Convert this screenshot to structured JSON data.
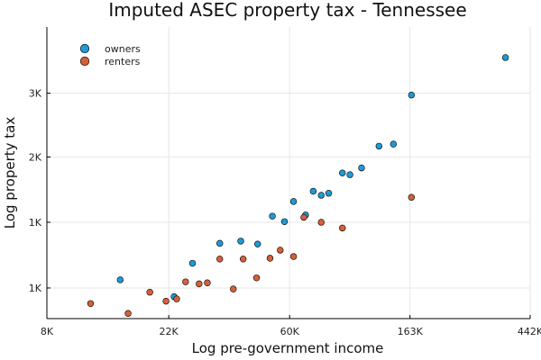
{
  "chart_data": {
    "type": "scatter",
    "title": "Imputed ASEC property tax - Tennessee",
    "xlabel": "Log pre-government income",
    "ylabel": "Log property tax",
    "x_scale": "log",
    "y_scale": "log",
    "xlim": [
      8000,
      442000
    ],
    "ylim": [
      480,
      4700
    ],
    "x_ticks": [
      {
        "value": 8000,
        "label": "8K"
      },
      {
        "value": 22000,
        "label": "22K"
      },
      {
        "value": 60000,
        "label": "60K"
      },
      {
        "value": 163000,
        "label": "163K"
      },
      {
        "value": 442000,
        "label": "442K"
      }
    ],
    "y_ticks": [
      {
        "value": 610,
        "label": "1K"
      },
      {
        "value": 1020,
        "label": "1K"
      },
      {
        "value": 1700,
        "label": "2K"
      },
      {
        "value": 2800,
        "label": "3K"
      }
    ],
    "grid": true,
    "legend_position": "top-left",
    "series": [
      {
        "name": "owners",
        "color": "#1f9ad6",
        "points": [
          {
            "x": 14700,
            "y": 650
          },
          {
            "x": 23000,
            "y": 570
          },
          {
            "x": 26800,
            "y": 740
          },
          {
            "x": 33600,
            "y": 865
          },
          {
            "x": 40000,
            "y": 880
          },
          {
            "x": 46000,
            "y": 860
          },
          {
            "x": 52000,
            "y": 1070
          },
          {
            "x": 57500,
            "y": 1025
          },
          {
            "x": 62000,
            "y": 1200
          },
          {
            "x": 68500,
            "y": 1080
          },
          {
            "x": 73000,
            "y": 1300
          },
          {
            "x": 78000,
            "y": 1260
          },
          {
            "x": 83000,
            "y": 1280
          },
          {
            "x": 93000,
            "y": 1500
          },
          {
            "x": 99000,
            "y": 1480
          },
          {
            "x": 109000,
            "y": 1560
          },
          {
            "x": 126000,
            "y": 1850
          },
          {
            "x": 142000,
            "y": 1880
          },
          {
            "x": 165000,
            "y": 2760
          },
          {
            "x": 360000,
            "y": 3700
          }
        ]
      },
      {
        "name": "renters",
        "color": "#d4603a",
        "points": [
          {
            "x": 11500,
            "y": 540
          },
          {
            "x": 15700,
            "y": 500
          },
          {
            "x": 18800,
            "y": 590
          },
          {
            "x": 21500,
            "y": 550
          },
          {
            "x": 23500,
            "y": 560
          },
          {
            "x": 25300,
            "y": 640
          },
          {
            "x": 28300,
            "y": 630
          },
          {
            "x": 30300,
            "y": 635
          },
          {
            "x": 33600,
            "y": 765
          },
          {
            "x": 37600,
            "y": 605
          },
          {
            "x": 40800,
            "y": 765
          },
          {
            "x": 45600,
            "y": 660
          },
          {
            "x": 51000,
            "y": 770
          },
          {
            "x": 55500,
            "y": 820
          },
          {
            "x": 62000,
            "y": 780
          },
          {
            "x": 67500,
            "y": 1060
          },
          {
            "x": 78000,
            "y": 1020
          },
          {
            "x": 93000,
            "y": 975
          },
          {
            "x": 165000,
            "y": 1240
          }
        ]
      }
    ]
  }
}
